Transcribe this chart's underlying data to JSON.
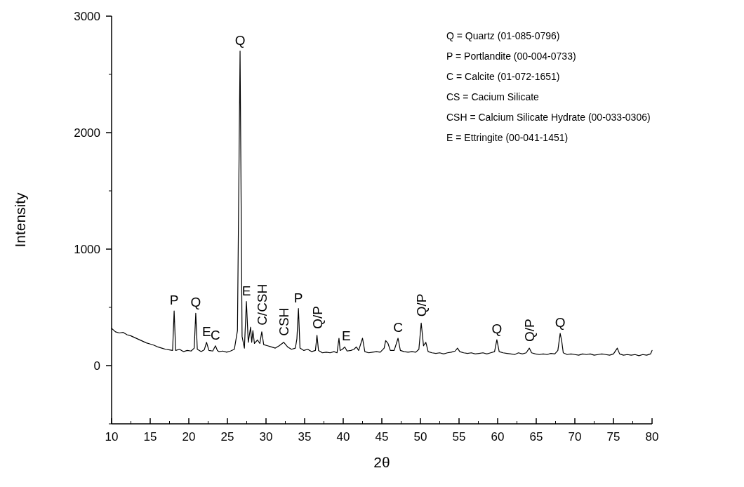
{
  "chart_data": {
    "type": "line",
    "xlabel": "2θ",
    "ylabel": "Intensity",
    "xlim": [
      10,
      80
    ],
    "ylim": [
      -500,
      3000
    ],
    "xticks": [
      10,
      15,
      20,
      25,
      30,
      35,
      40,
      45,
      50,
      55,
      60,
      65,
      70,
      75,
      80
    ],
    "yticks": [
      0,
      1000,
      2000,
      3000
    ],
    "grid": false,
    "marker": "none",
    "line_style": "solid",
    "series": [
      {
        "color": "#000000",
        "x": [
          10,
          10.5,
          11,
          11.5,
          12,
          12.5,
          13,
          13.5,
          14,
          14.5,
          15,
          15.5,
          16,
          16.5,
          17,
          17.5,
          17.9,
          18.1,
          18.3,
          18.8,
          19.3,
          19.8,
          20.3,
          20.7,
          20.9,
          21.1,
          21.6,
          22.0,
          22.3,
          22.6,
          23.1,
          23.45,
          23.7,
          23.9,
          24.4,
          24.9,
          25.4,
          25.9,
          26.3,
          26.64,
          26.9,
          27.2,
          27.46,
          27.7,
          28.0,
          28.15,
          28.3,
          28.5,
          28.9,
          29.2,
          29.45,
          29.7,
          30.2,
          30.7,
          31.2,
          31.7,
          32.3,
          32.8,
          33.3,
          33.8,
          34.0,
          34.2,
          34.4,
          34.9,
          35.4,
          35.9,
          36.4,
          36.6,
          36.8,
          37.3,
          37.8,
          38.3,
          38.8,
          39.2,
          39.45,
          39.6,
          39.9,
          40.2,
          40.5,
          41.0,
          41.4,
          41.7,
          42.0,
          42.5,
          42.8,
          43.3,
          43.8,
          44.3,
          44.8,
          45.3,
          45.5,
          45.8,
          46.1,
          46.6,
          47.1,
          47.4,
          47.9,
          48.4,
          48.9,
          49.4,
          49.8,
          50.1,
          50.4,
          50.7,
          51.0,
          51.5,
          52.0,
          52.5,
          53.0,
          53.5,
          54.0,
          54.5,
          54.8,
          55.1,
          55.6,
          56.1,
          56.6,
          57.1,
          57.6,
          58.1,
          58.6,
          59.1,
          59.6,
          59.9,
          60.2,
          60.7,
          61.2,
          61.7,
          62.2,
          62.7,
          63.2,
          63.7,
          64.1,
          64.4,
          64.9,
          65.4,
          65.9,
          66.4,
          66.9,
          67.4,
          67.8,
          68.1,
          68.3,
          68.5,
          69.0,
          69.5,
          70.0,
          70.5,
          71.0,
          71.5,
          72.0,
          72.5,
          73.0,
          73.5,
          74.0,
          74.5,
          75.0,
          75.5,
          75.8,
          76.3,
          76.8,
          77.3,
          77.8,
          78.3,
          78.8,
          79.3,
          79.8,
          80
        ],
        "values": [
          320,
          290,
          280,
          285,
          265,
          255,
          240,
          225,
          210,
          195,
          185,
          175,
          160,
          150,
          140,
          135,
          130,
          470,
          130,
          140,
          120,
          130,
          125,
          150,
          450,
          140,
          120,
          135,
          200,
          130,
          125,
          170,
          130,
          120,
          125,
          115,
          125,
          140,
          300,
          2700,
          250,
          150,
          550,
          200,
          330,
          200,
          300,
          190,
          220,
          190,
          290,
          180,
          170,
          160,
          150,
          170,
          200,
          160,
          140,
          150,
          230,
          490,
          150,
          130,
          140,
          120,
          130,
          260,
          130,
          110,
          115,
          110,
          120,
          110,
          235,
          130,
          140,
          160,
          125,
          130,
          140,
          160,
          130,
          235,
          120,
          110,
          115,
          120,
          115,
          150,
          215,
          190,
          130,
          130,
          235,
          130,
          120,
          115,
          120,
          115,
          140,
          366,
          170,
          200,
          120,
          110,
          105,
          110,
          100,
          110,
          115,
          125,
          150,
          120,
          110,
          105,
          110,
          100,
          105,
          110,
          100,
          110,
          120,
          222,
          120,
          110,
          105,
          100,
          95,
          110,
          100,
          110,
          150,
          110,
          100,
          95,
          100,
          95,
          105,
          100,
          130,
          276,
          210,
          110,
          95,
          100,
          95,
          90,
          100,
          95,
          100,
          90,
          95,
          100,
          95,
          90,
          100,
          150,
          100,
          90,
          95,
          90,
          95,
          85,
          95,
          90,
          100,
          130
        ]
      }
    ],
    "annotations": [
      {
        "text": "P",
        "x": 18.1,
        "y": 470
      },
      {
        "text": "Q",
        "x": 20.9,
        "y": 450
      },
      {
        "text": "E",
        "x": 22.3,
        "y": 200
      },
      {
        "text": "C",
        "x": 23.45,
        "y": 170
      },
      {
        "text": "Q",
        "x": 26.64,
        "y": 2700
      },
      {
        "text": "E",
        "x": 27.46,
        "y": 550
      },
      {
        "text": "C/CSH",
        "x": 29.45,
        "y": 290
      },
      {
        "text": "CSH",
        "x": 32.3,
        "y": 200
      },
      {
        "text": "P",
        "x": 34.2,
        "y": 490
      },
      {
        "text": "Q/P",
        "x": 36.6,
        "y": 260
      },
      {
        "text": "E",
        "x": 40.4,
        "y": 160
      },
      {
        "text": "C",
        "x": 47.1,
        "y": 235
      },
      {
        "text": "Q/P",
        "x": 50.1,
        "y": 366
      },
      {
        "text": "Q",
        "x": 59.9,
        "y": 222
      },
      {
        "text": "Q/P",
        "x": 64.1,
        "y": 150
      },
      {
        "text": "Q",
        "x": 68.1,
        "y": 276
      },
      "Q = Quartz  (01-085-0796)",
      "P = Portlandite (00-004-0733)",
      "C = Calcite (01-072-1651)",
      "CS = Cacium Silicate",
      "CSH = Calcium Silicate Hydrate (00-033-0306)",
      "E = Ettringite (00-041-1451)"
    ]
  }
}
